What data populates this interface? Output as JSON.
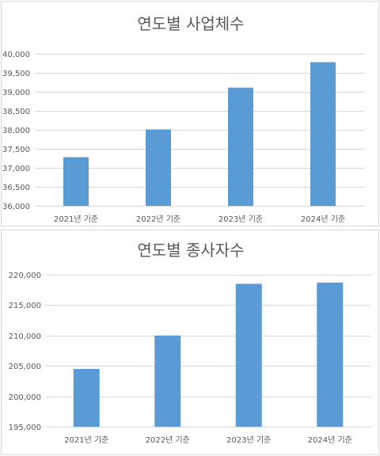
{
  "chart_data": [
    {
      "type": "bar",
      "title": "연도별 사업체수",
      "categories": [
        "2021년 기준",
        "2022년 기준",
        "2023년 기준",
        "2024년 기준"
      ],
      "values": [
        37280,
        38010,
        39110,
        39780
      ],
      "ylim": [
        36000,
        40000
      ],
      "yticks": [
        36000,
        36500,
        37000,
        37500,
        38000,
        38500,
        39000,
        39500,
        40000
      ],
      "ytick_labels": [
        "36,000",
        "36,500",
        "37,000",
        "37,500",
        "38,000",
        "38,500",
        "39,000",
        "39,500",
        "40,000"
      ],
      "grid": true,
      "bar_color": "#5b9bd5"
    },
    {
      "type": "bar",
      "title": "연도별 종사자수",
      "categories": [
        "2021년 기준",
        "2022년 기준",
        "2023년 기준",
        "2024년 기준"
      ],
      "values": [
        204500,
        210000,
        218500,
        218700
      ],
      "ylim": [
        195000,
        220000
      ],
      "yticks": [
        195000,
        200000,
        205000,
        210000,
        215000,
        220000
      ],
      "ytick_labels": [
        "195,000",
        "200,000",
        "205,000",
        "210,000",
        "215,000",
        "220,000"
      ],
      "grid": true,
      "bar_color": "#5b9bd5"
    }
  ]
}
